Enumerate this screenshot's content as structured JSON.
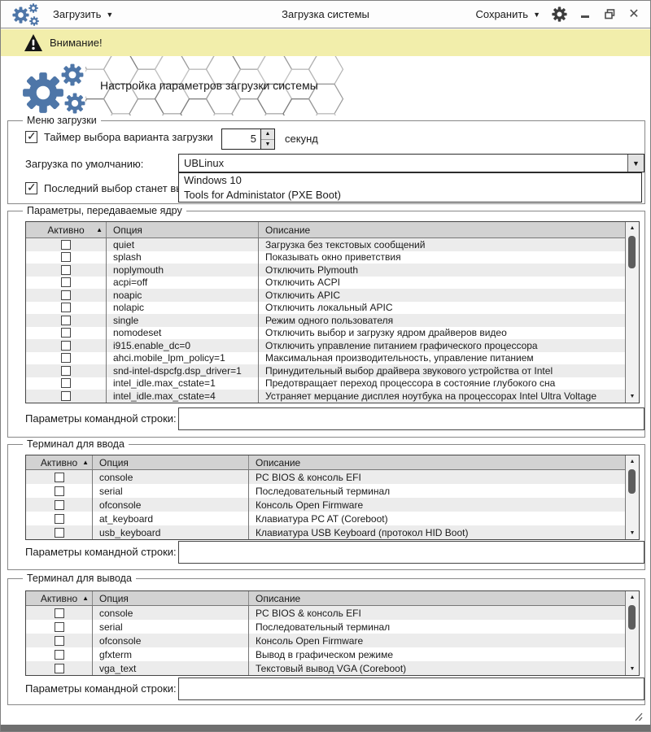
{
  "titlebar": {
    "load_label": "Загрузить",
    "title": "Загрузка системы",
    "save_label": "Сохранить"
  },
  "warning": {
    "text": "Внимание!"
  },
  "banner": {
    "title": "Настройка параметров загрузки системы"
  },
  "colors": {
    "accent_blue": "#4e76a8",
    "warning_bg": "#f2eeab",
    "table_header": "#d2d2d2",
    "bottom_bar": "#6f6f6f"
  },
  "boot_menu": {
    "legend": "Меню загрузки",
    "timer": {
      "label": "Таймер выбора варианта загрузки",
      "checked": true,
      "value": "5",
      "unit": "секунд"
    },
    "default_boot": {
      "label": "Загрузка по умолчанию:",
      "selected": "UBLinux",
      "options": [
        "Windows 10",
        "Tools for Administator (PXE Boot)"
      ]
    },
    "last_choice": {
      "label": "Последний выбор станет выб",
      "checked": true
    }
  },
  "kernel_params": {
    "legend": "Параметры, передаваемые ядру",
    "columns": [
      "Активно",
      "Опция",
      "Описание"
    ],
    "rows": [
      {
        "active": false,
        "option": "quiet",
        "description": "Загрузка без текстовых сообщений"
      },
      {
        "active": false,
        "option": "splash",
        "description": "Показывать окно приветствия"
      },
      {
        "active": false,
        "option": "noplymouth",
        "description": "Отключить Plymouth"
      },
      {
        "active": false,
        "option": "acpi=off",
        "description": "Отключить ACPI"
      },
      {
        "active": false,
        "option": "noapic",
        "description": "Отключить APIC"
      },
      {
        "active": false,
        "option": "nolapic",
        "description": "Отключить локальный APIC"
      },
      {
        "active": false,
        "option": "single",
        "description": "Режим одного пользователя"
      },
      {
        "active": false,
        "option": "nomodeset",
        "description": "Отключить выбор и загрузку ядром драйверов видео"
      },
      {
        "active": false,
        "option": "i915.enable_dc=0",
        "description": "Отключить управление питанием графического процессора"
      },
      {
        "active": false,
        "option": "ahci.mobile_lpm_policy=1",
        "description": "Максимальная производительность, управление питанием"
      },
      {
        "active": false,
        "option": "snd-intel-dspcfg.dsp_driver=1",
        "description": "Принудительный выбор драйвера звукового устройства от Intel"
      },
      {
        "active": false,
        "option": "intel_idle.max_cstate=1",
        "description": "Предотвращает переход процессора в состояние глубокого сна"
      },
      {
        "active": false,
        "option": "intel_idle.max_cstate=4",
        "description": "Устраняет мерцание дисплея ноутбука на процессорах Intel Ultra Voltage"
      }
    ],
    "cmdline": {
      "label": "Параметры командной строки:",
      "value": ""
    }
  },
  "input_terminal": {
    "legend": "Терминал для ввода",
    "columns": [
      "Активно",
      "Опция",
      "Описание"
    ],
    "rows": [
      {
        "active": false,
        "option": "console",
        "description": "PC BIOS & консоль EFI"
      },
      {
        "active": false,
        "option": "serial",
        "description": "Последовательный терминал"
      },
      {
        "active": false,
        "option": "ofconsole",
        "description": "Консоль Open Firmware"
      },
      {
        "active": false,
        "option": "at_keyboard",
        "description": "Клавиатура PC AT (Coreboot)"
      },
      {
        "active": false,
        "option": "usb_keyboard",
        "description": "Клавиатура USB Keyboard (протокол HID Boot)"
      }
    ],
    "cmdline": {
      "label": "Параметры командной строки:",
      "value": ""
    }
  },
  "output_terminal": {
    "legend": "Терминал для вывода",
    "columns": [
      "Активно",
      "Опция",
      "Описание"
    ],
    "rows": [
      {
        "active": false,
        "option": "console",
        "description": "PC BIOS & консоль EFI"
      },
      {
        "active": false,
        "option": "serial",
        "description": "Последовательный терминал"
      },
      {
        "active": false,
        "option": "ofconsole",
        "description": "Консоль Open Firmware"
      },
      {
        "active": false,
        "option": "gfxterm",
        "description": "Вывод в графическом режиме"
      },
      {
        "active": false,
        "option": "vga_text",
        "description": "Текстовый вывод VGA (Coreboot)"
      }
    ],
    "cmdline": {
      "label": "Параметры командной строки:",
      "value": ""
    }
  }
}
